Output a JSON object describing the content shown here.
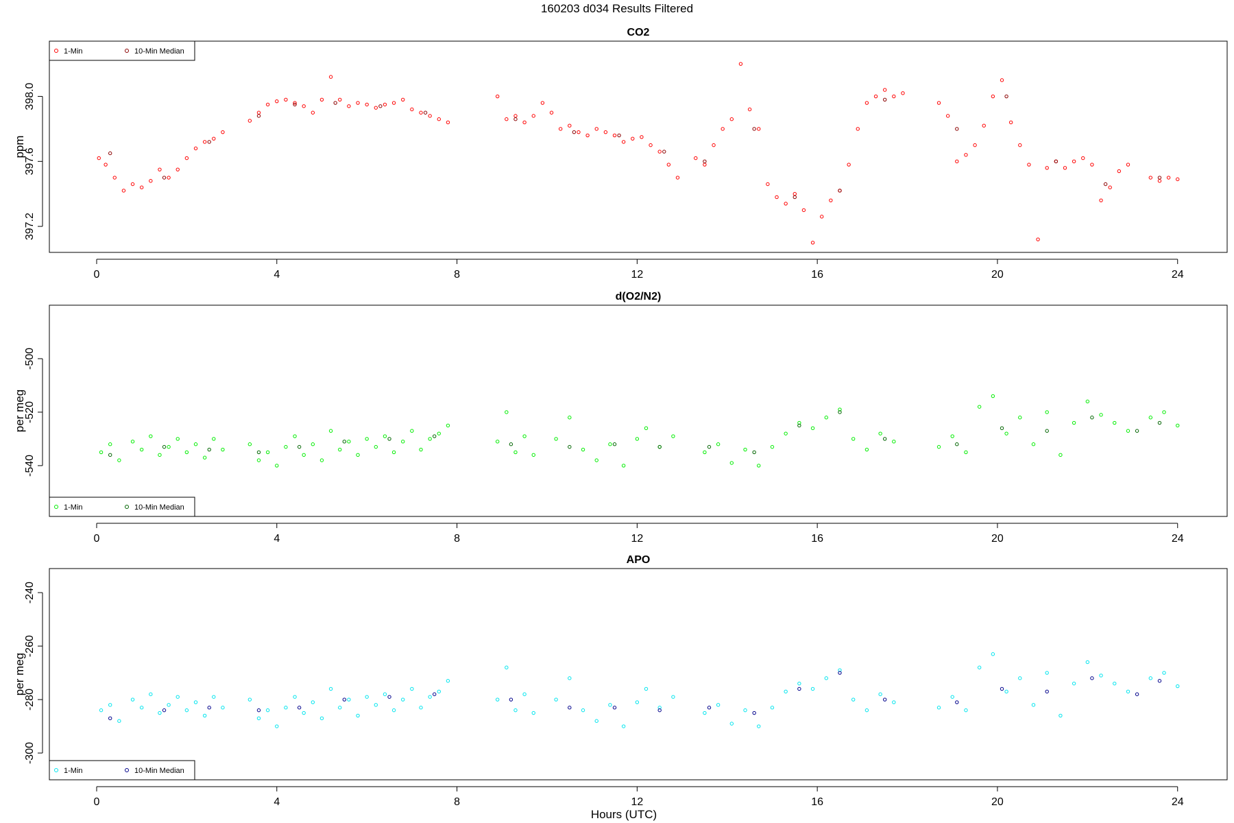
{
  "figure_title": "160203   d034   Results Filtered",
  "xlabel": "Hours (UTC)",
  "chart_data": [
    {
      "type": "scatter",
      "title": "CO2",
      "ylabel": "ppm",
      "xlim": [
        -1.05,
        25.1
      ],
      "ylim": [
        397.04,
        398.34
      ],
      "xticks": [
        0,
        4,
        8,
        12,
        16,
        20,
        24
      ],
      "yticks": [
        397.2,
        397.6,
        398.0
      ],
      "ytick_labels": [
        "397.2",
        "397.6",
        "398.0"
      ],
      "legend_position": "top-left",
      "color_1min": "#ff0000",
      "color_median": "#8b0000",
      "legend": [
        "1-Min",
        "10-Min Median"
      ],
      "series": [
        {
          "name": "1-Min",
          "x": [
            0.05,
            0.2,
            0.4,
            0.6,
            0.8,
            1.0,
            1.2,
            1.4,
            1.6,
            1.8,
            2.0,
            2.2,
            2.4,
            2.6,
            2.8,
            3.4,
            3.6,
            3.8,
            4.0,
            4.2,
            4.4,
            4.6,
            4.8,
            5.0,
            5.2,
            5.4,
            5.6,
            5.8,
            6.0,
            6.2,
            6.4,
            6.6,
            6.8,
            7.0,
            7.2,
            7.4,
            7.6,
            7.8,
            8.9,
            9.1,
            9.3,
            9.5,
            9.7,
            9.9,
            10.1,
            10.3,
            10.5,
            10.7,
            10.9,
            11.1,
            11.3,
            11.5,
            11.7,
            11.9,
            12.1,
            12.3,
            12.5,
            12.7,
            12.9,
            13.3,
            13.5,
            13.7,
            13.9,
            14.1,
            14.3,
            14.5,
            14.7,
            14.9,
            15.1,
            15.3,
            15.5,
            15.7,
            15.9,
            16.1,
            16.3,
            16.5,
            16.7,
            16.9,
            17.1,
            17.3,
            17.5,
            17.7,
            17.9,
            18.7,
            18.9,
            19.1,
            19.3,
            19.5,
            19.7,
            19.9,
            20.1,
            20.3,
            20.5,
            20.7,
            20.9,
            21.1,
            21.3,
            21.5,
            21.7,
            21.9,
            22.1,
            22.3,
            22.5,
            22.7,
            22.9,
            23.4,
            23.6,
            23.8,
            24.0
          ],
          "y": [
            397.62,
            397.58,
            397.5,
            397.42,
            397.46,
            397.44,
            397.48,
            397.55,
            397.5,
            397.55,
            397.62,
            397.68,
            397.72,
            397.74,
            397.78,
            397.85,
            397.9,
            397.95,
            397.97,
            397.98,
            397.96,
            397.94,
            397.9,
            397.98,
            398.12,
            397.98,
            397.94,
            397.96,
            397.95,
            397.93,
            397.95,
            397.96,
            397.98,
            397.92,
            397.9,
            397.88,
            397.86,
            397.84,
            398.0,
            397.86,
            397.88,
            397.84,
            397.88,
            397.96,
            397.9,
            397.8,
            397.82,
            397.78,
            397.76,
            397.8,
            397.78,
            397.76,
            397.72,
            397.74,
            397.75,
            397.7,
            397.66,
            397.58,
            397.5,
            397.62,
            397.58,
            397.7,
            397.8,
            397.86,
            398.2,
            397.92,
            397.8,
            397.46,
            397.38,
            397.34,
            397.4,
            397.3,
            397.1,
            397.26,
            397.36,
            397.42,
            397.58,
            397.8,
            397.96,
            398.0,
            398.04,
            398.0,
            398.02,
            397.96,
            397.88,
            397.6,
            397.64,
            397.7,
            397.82,
            398.0,
            398.1,
            397.84,
            397.7,
            397.58,
            397.12,
            397.56,
            397.6,
            397.56,
            397.6,
            397.62,
            397.58,
            397.36,
            397.44,
            397.54,
            397.58,
            397.5,
            397.48,
            397.5,
            397.49
          ]
        },
        {
          "name": "10-Min Median",
          "x": [
            0.3,
            1.5,
            2.5,
            3.6,
            4.4,
            5.3,
            6.3,
            7.3,
            9.3,
            10.6,
            11.6,
            12.6,
            13.5,
            14.6,
            15.5,
            16.5,
            17.5,
            19.1,
            20.2,
            21.3,
            22.4,
            23.6
          ],
          "y": [
            397.65,
            397.5,
            397.72,
            397.88,
            397.95,
            397.96,
            397.94,
            397.9,
            397.86,
            397.78,
            397.76,
            397.66,
            397.6,
            397.8,
            397.38,
            397.42,
            397.98,
            397.8,
            398.0,
            397.6,
            397.46,
            397.5
          ]
        }
      ]
    },
    {
      "type": "scatter",
      "title": "d(O2/N2)",
      "ylabel": "per meg",
      "xlim": [
        -1.05,
        25.1
      ],
      "ylim": [
        -559,
        -480
      ],
      "xticks": [
        0,
        4,
        8,
        12,
        16,
        20,
        24
      ],
      "yticks": [
        -540,
        -520,
        -500
      ],
      "ytick_labels": [
        "-540",
        "-520",
        "-500"
      ],
      "legend_position": "bottom-left",
      "color_1min": "#00ee00",
      "color_median": "#006400",
      "legend": [
        "1-Min",
        "10-Min Median"
      ],
      "series": [
        {
          "name": "1-Min",
          "x": [
            0.1,
            0.3,
            0.5,
            0.8,
            1.0,
            1.2,
            1.4,
            1.6,
            1.8,
            2.0,
            2.2,
            2.4,
            2.6,
            2.8,
            3.4,
            3.6,
            3.8,
            4.0,
            4.2,
            4.4,
            4.6,
            4.8,
            5.0,
            5.2,
            5.4,
            5.6,
            5.8,
            6.0,
            6.2,
            6.4,
            6.6,
            6.8,
            7.0,
            7.2,
            7.4,
            7.6,
            7.8,
            8.9,
            9.1,
            9.3,
            9.5,
            9.7,
            10.2,
            10.5,
            10.8,
            11.1,
            11.4,
            11.7,
            12.0,
            12.2,
            12.5,
            12.8,
            13.5,
            13.8,
            14.1,
            14.4,
            14.7,
            15.0,
            15.3,
            15.6,
            15.9,
            16.2,
            16.5,
            16.8,
            17.1,
            17.4,
            17.7,
            18.7,
            19.0,
            19.3,
            19.6,
            19.9,
            20.2,
            20.5,
            20.8,
            21.1,
            21.4,
            21.7,
            22.0,
            22.3,
            22.6,
            22.9,
            23.4,
            23.7,
            24.0
          ],
          "y": [
            -535,
            -532,
            -538,
            -531,
            -534,
            -529,
            -536,
            -533,
            -530,
            -535,
            -532,
            -537,
            -530,
            -534,
            -532,
            -538,
            -535,
            -540,
            -533,
            -529,
            -536,
            -532,
            -538,
            -527,
            -534,
            -531,
            -536,
            -530,
            -533,
            -529,
            -535,
            -531,
            -527,
            -534,
            -530,
            -528,
            -525,
            -531,
            -520,
            -535,
            -529,
            -536,
            -530,
            -522,
            -534,
            -538,
            -532,
            -540,
            -530,
            -526,
            -533,
            -529,
            -535,
            -532,
            -539,
            -534,
            -540,
            -533,
            -528,
            -524,
            -526,
            -522,
            -519,
            -530,
            -534,
            -528,
            -531,
            -533,
            -529,
            -535,
            -518,
            -514,
            -528,
            -522,
            -532,
            -520,
            -536,
            -524,
            -516,
            -521,
            -524,
            -527,
            -522,
            -520,
            -525
          ]
        },
        {
          "name": "10-Min Median",
          "x": [
            0.3,
            1.5,
            2.5,
            3.6,
            4.5,
            5.5,
            6.5,
            7.5,
            9.2,
            10.5,
            11.5,
            12.5,
            13.6,
            14.6,
            15.6,
            16.5,
            17.5,
            19.1,
            20.1,
            21.1,
            22.1,
            23.1,
            23.6
          ],
          "y": [
            -536,
            -533,
            -534,
            -535,
            -533,
            -531,
            -530,
            -529,
            -532,
            -533,
            -532,
            -533,
            -533,
            -535,
            -525,
            -520,
            -530,
            -532,
            -526,
            -527,
            -522,
            -527,
            -524
          ]
        }
      ]
    },
    {
      "type": "scatter",
      "title": "APO",
      "ylabel": "per meg",
      "xlim": [
        -1.05,
        25.1
      ],
      "ylim": [
        -310,
        -231
      ],
      "xticks": [
        0,
        4,
        8,
        12,
        16,
        20,
        24
      ],
      "yticks": [
        -300,
        -280,
        -260,
        -240
      ],
      "ytick_labels": [
        "-300",
        "-280",
        "-260",
        "-240"
      ],
      "legend_position": "bottom-left",
      "color_1min": "#00e5ee",
      "color_median": "#00008b",
      "legend": [
        "1-Min",
        "10-Min Median"
      ],
      "series": [
        {
          "name": "1-Min",
          "x": [
            0.1,
            0.3,
            0.5,
            0.8,
            1.0,
            1.2,
            1.4,
            1.6,
            1.8,
            2.0,
            2.2,
            2.4,
            2.6,
            2.8,
            3.4,
            3.6,
            3.8,
            4.0,
            4.2,
            4.4,
            4.6,
            4.8,
            5.0,
            5.2,
            5.4,
            5.6,
            5.8,
            6.0,
            6.2,
            6.4,
            6.6,
            6.8,
            7.0,
            7.2,
            7.4,
            7.6,
            7.8,
            8.9,
            9.1,
            9.3,
            9.5,
            9.7,
            10.2,
            10.5,
            10.8,
            11.1,
            11.4,
            11.7,
            12.0,
            12.2,
            12.5,
            12.8,
            13.5,
            13.8,
            14.1,
            14.4,
            14.7,
            15.0,
            15.3,
            15.6,
            15.9,
            16.2,
            16.5,
            16.8,
            17.1,
            17.4,
            17.7,
            18.7,
            19.0,
            19.3,
            19.6,
            19.9,
            20.2,
            20.5,
            20.8,
            21.1,
            21.4,
            21.7,
            22.0,
            22.3,
            22.6,
            22.9,
            23.4,
            23.7,
            24.0
          ],
          "y": [
            -284,
            -282,
            -288,
            -280,
            -283,
            -278,
            -285,
            -282,
            -279,
            -284,
            -281,
            -286,
            -279,
            -283,
            -280,
            -287,
            -284,
            -290,
            -283,
            -279,
            -285,
            -281,
            -287,
            -276,
            -283,
            -280,
            -286,
            -279,
            -282,
            -278,
            -284,
            -280,
            -276,
            -283,
            -279,
            -277,
            -273,
            -280,
            -268,
            -284,
            -278,
            -285,
            -280,
            -272,
            -284,
            -288,
            -282,
            -290,
            -281,
            -276,
            -283,
            -279,
            -285,
            -282,
            -289,
            -284,
            -290,
            -283,
            -277,
            -274,
            -276,
            -272,
            -269,
            -280,
            -284,
            -278,
            -281,
            -283,
            -279,
            -284,
            -268,
            -263,
            -277,
            -272,
            -282,
            -270,
            -286,
            -274,
            -266,
            -271,
            -274,
            -277,
            -272,
            -270,
            -275
          ]
        },
        {
          "name": "10-Min Median",
          "x": [
            0.3,
            1.5,
            2.5,
            3.6,
            4.5,
            5.5,
            6.5,
            7.5,
            9.2,
            10.5,
            11.5,
            12.5,
            13.6,
            14.6,
            15.6,
            16.5,
            17.5,
            19.1,
            20.1,
            21.1,
            22.1,
            23.1,
            23.6
          ],
          "y": [
            -287,
            -284,
            -283,
            -284,
            -283,
            -280,
            -279,
            -278,
            -280,
            -283,
            -283,
            -284,
            -283,
            -285,
            -276,
            -270,
            -280,
            -281,
            -276,
            -277,
            -272,
            -278,
            -273
          ]
        }
      ]
    }
  ]
}
